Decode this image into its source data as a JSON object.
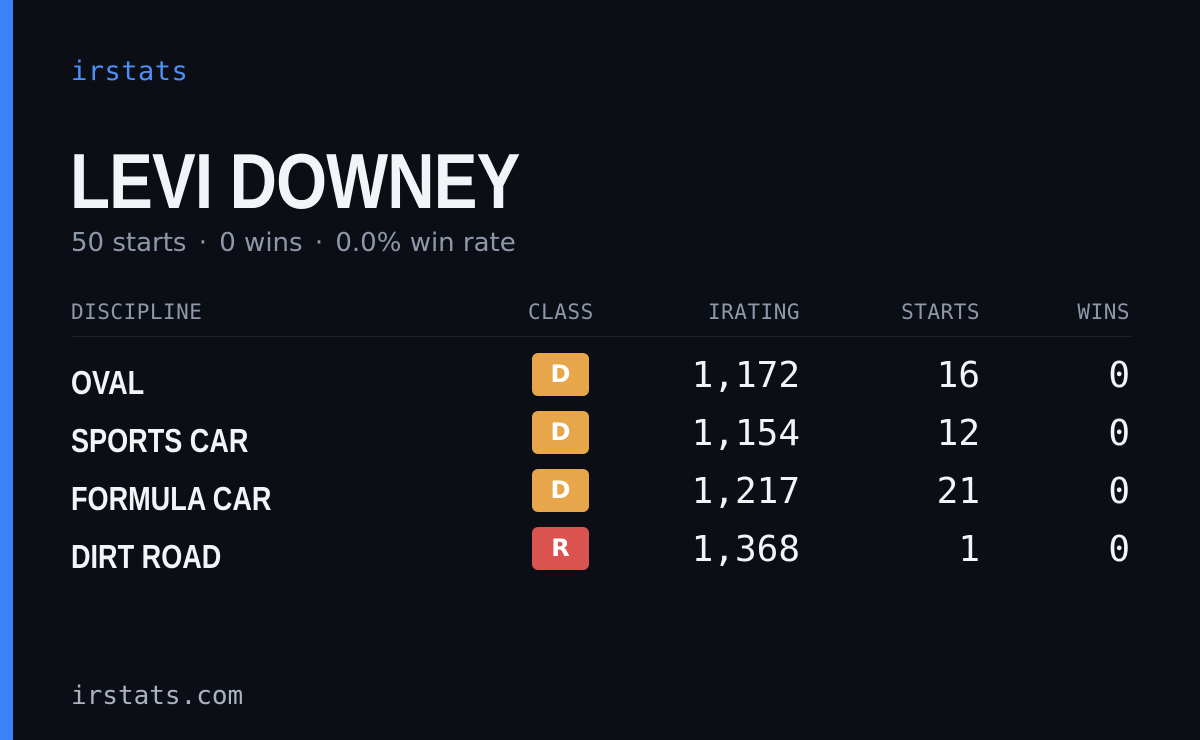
{
  "brand": "irstats",
  "driver": {
    "name": "LEVI DOWNEY",
    "starts_text": "50 starts",
    "wins_text": "0 wins",
    "win_rate_text": "0.0% win rate",
    "separator": "·"
  },
  "table": {
    "headers": {
      "discipline": "DISCIPLINE",
      "class": "CLASS",
      "irating": "IRATING",
      "starts": "STARTS",
      "wins": "WINS"
    },
    "rows": [
      {
        "discipline": "OVAL",
        "class": "D",
        "class_color": "#e8a64a",
        "irating": "1,172",
        "starts": "16",
        "wins": "0"
      },
      {
        "discipline": "SPORTS CAR",
        "class": "D",
        "class_color": "#e8a64a",
        "irating": "1,154",
        "starts": "12",
        "wins": "0"
      },
      {
        "discipline": "FORMULA CAR",
        "class": "D",
        "class_color": "#e8a64a",
        "irating": "1,217",
        "starts": "21",
        "wins": "0"
      },
      {
        "discipline": "DIRT ROAD",
        "class": "R",
        "class_color": "#d9534f",
        "irating": "1,368",
        "starts": "1",
        "wins": "0"
      }
    ]
  },
  "footer": "irstats.com",
  "colors": {
    "background": "#0b0e15",
    "accent": "#3b82f6",
    "brand_text": "#4d8ef7",
    "muted_text": "#8f98a8",
    "primary_text": "#f3f4f8"
  }
}
